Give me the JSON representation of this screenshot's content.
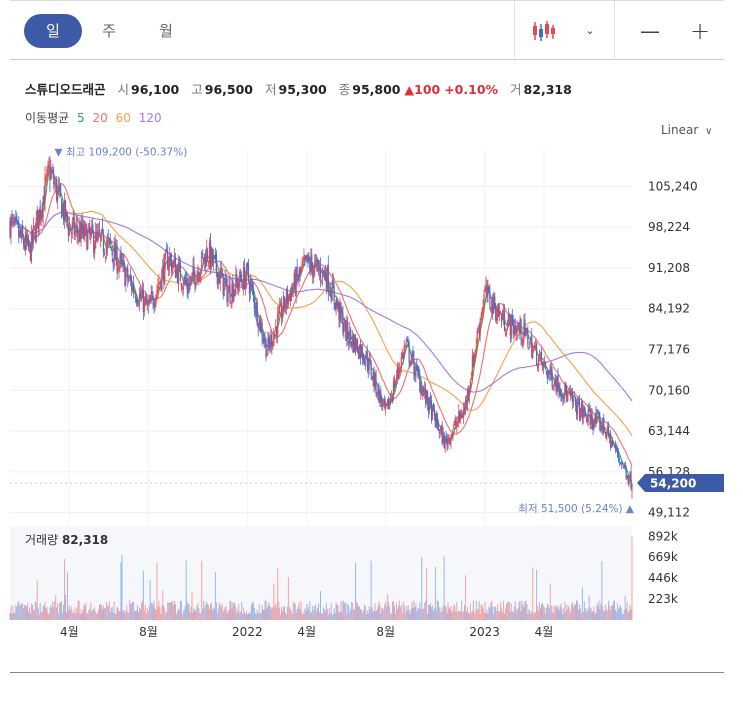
{
  "tabs": [
    "일",
    "주",
    "월"
  ],
  "toolbar": {
    "zoom_out": "—",
    "zoom_in": "+"
  },
  "stock": {
    "name": "스튜디오드래곤",
    "open_label": "시",
    "open": "96,100",
    "high_label": "고",
    "high": "96,500",
    "low_label": "저",
    "low": "95,300",
    "close_label": "종",
    "close": "95,800",
    "change_arrow": "▲",
    "change": "100",
    "change_pct": "+0.10%",
    "volume_label": "거",
    "volume": "82,318"
  },
  "ma_legend": {
    "label": "이동평균",
    "periods": [
      "5",
      "20",
      "60",
      "120"
    ]
  },
  "scale_mode": "Linear",
  "colors": {
    "up": "#e8474f",
    "down": "#3b6fd1",
    "ma5": "#35a653",
    "ma20": "#f07070",
    "ma60": "#f3a24a",
    "ma120": "#a678e8",
    "accent": "#3c5aa6",
    "vol_up": "#f4a3a3",
    "vol_down": "#9ab8ea"
  },
  "chart_data": {
    "type": "candlestick",
    "y_ticks": [
      105240,
      98224,
      91208,
      84192,
      77176,
      70160,
      63144,
      56128,
      49112
    ],
    "y_tick_labels": [
      "105,240",
      "98,224",
      "91,208",
      "84,192",
      "77,176",
      "70,160",
      "63,144",
      "56,128",
      "49,112"
    ],
    "ylim": [
      47500,
      111500
    ],
    "x_tick_labels": [
      "4월",
      "8월",
      "2022",
      "4월",
      "8월",
      "2023",
      "4월"
    ],
    "x_tick_dates": [
      "2021-04",
      "2021-08",
      "2022-01",
      "2022-04",
      "2022-08",
      "2023-01",
      "2023-04"
    ],
    "current_price": 54200,
    "current_price_label": "54,200",
    "high_marker": {
      "arrow": "▼",
      "label": "최고",
      "value": "109,200",
      "pct": "(-50.37%)",
      "price": 109200,
      "date": "2021-03"
    },
    "low_marker": {
      "arrow": "▲",
      "label": "최저",
      "value": "51,500",
      "pct": "(5.24%)",
      "price": 51500,
      "date": "2023-07"
    },
    "price_anchors": [
      [
        "2021-01",
        99000
      ],
      [
        "2021-02",
        94000
      ],
      [
        "2021-03",
        108000
      ],
      [
        "2021-04",
        98000
      ],
      [
        "2021-05",
        96500
      ],
      [
        "2021-06",
        95000
      ],
      [
        "2021-07",
        89000
      ],
      [
        "2021-08",
        84000
      ],
      [
        "2021-09",
        93000
      ],
      [
        "2021-10",
        88000
      ],
      [
        "2021-11",
        94000
      ],
      [
        "2021-12",
        87000
      ],
      [
        "2022-01",
        90000
      ],
      [
        "2022-02",
        77000
      ],
      [
        "2022-03",
        86000
      ],
      [
        "2022-04",
        92000
      ],
      [
        "2022-05",
        90000
      ],
      [
        "2022-06",
        80000
      ],
      [
        "2022-07",
        76000
      ],
      [
        "2022-08",
        66000
      ],
      [
        "2022-09",
        78000
      ],
      [
        "2022-10",
        69000
      ],
      [
        "2022-11",
        61000
      ],
      [
        "2022-12",
        67000
      ],
      [
        "2023-01",
        87000
      ],
      [
        "2023-02",
        82000
      ],
      [
        "2023-03",
        80000
      ],
      [
        "2023-04",
        74000
      ],
      [
        "2023-05",
        70000
      ],
      [
        "2023-06",
        66000
      ],
      [
        "2023-07",
        64000
      ],
      [
        "2023-08",
        54200
      ]
    ],
    "volume": {
      "title": "거래량",
      "value": "82,318",
      "y_tick_labels": [
        "892k",
        "669k",
        "446k",
        "223k"
      ],
      "y_ticks": [
        892000,
        669000,
        446000,
        223000
      ],
      "ylim": [
        0,
        980000
      ]
    }
  }
}
